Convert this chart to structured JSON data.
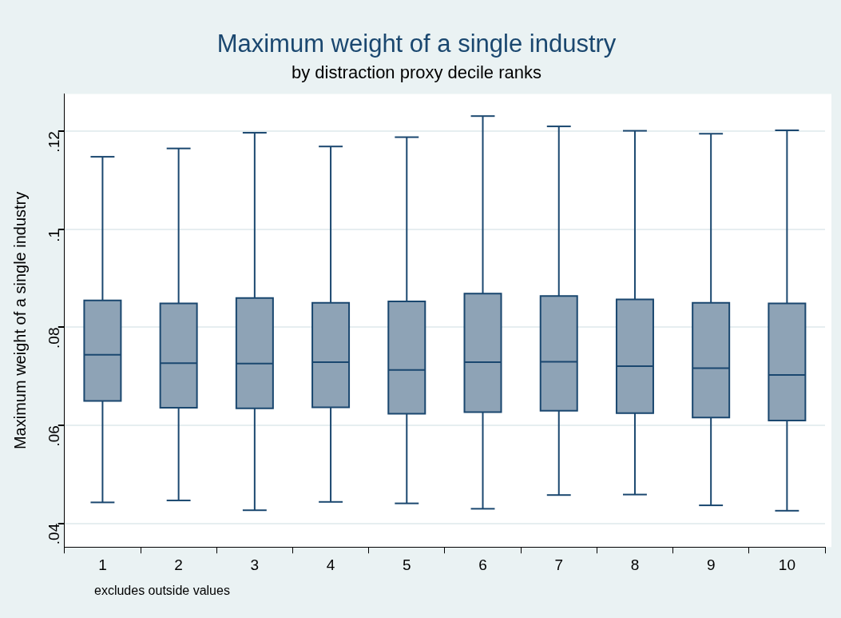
{
  "chart_data": {
    "type": "box",
    "title": "Maximum weight of a single industry",
    "subtitle": "by distraction proxy decile ranks",
    "ylabel": "Maximum weight of a single industry",
    "annotations": [
      "excludes outside values"
    ],
    "categories": [
      "1",
      "2",
      "3",
      "4",
      "5",
      "6",
      "7",
      "8",
      "9",
      "10"
    ],
    "color": "#8ea3b6",
    "boxes": [
      {
        "low": 0.0443,
        "q1": 0.065,
        "median": 0.0744,
        "q3": 0.0855,
        "high": 0.1148
      },
      {
        "low": 0.0447,
        "q1": 0.0636,
        "median": 0.0727,
        "q3": 0.0849,
        "high": 0.1165
      },
      {
        "low": 0.0427,
        "q1": 0.0635,
        "median": 0.0726,
        "q3": 0.086,
        "high": 0.1197
      },
      {
        "low": 0.0444,
        "q1": 0.0637,
        "median": 0.0729,
        "q3": 0.085,
        "high": 0.1169
      },
      {
        "low": 0.0441,
        "q1": 0.0624,
        "median": 0.0713,
        "q3": 0.0853,
        "high": 0.1188
      },
      {
        "low": 0.043,
        "q1": 0.0627,
        "median": 0.0729,
        "q3": 0.0869,
        "high": 0.1231
      },
      {
        "low": 0.0458,
        "q1": 0.063,
        "median": 0.073,
        "q3": 0.0864,
        "high": 0.121
      },
      {
        "low": 0.0459,
        "q1": 0.0625,
        "median": 0.0721,
        "q3": 0.0857,
        "high": 0.1201
      },
      {
        "low": 0.0437,
        "q1": 0.0616,
        "median": 0.0717,
        "q3": 0.085,
        "high": 0.1195
      },
      {
        "low": 0.0426,
        "q1": 0.061,
        "median": 0.0703,
        "q3": 0.0849,
        "high": 0.1202
      }
    ],
    "ylim": [
      0.0352,
      0.1276
    ],
    "yticks": [
      {
        "value": 0.04,
        "label": ".04"
      },
      {
        "value": 0.06,
        "label": ".06"
      },
      {
        "value": 0.08,
        "label": ".08"
      },
      {
        "value": 0.1,
        "label": ".1"
      },
      {
        "value": 0.12,
        "label": ".12"
      }
    ],
    "grid": "y",
    "legend": false
  }
}
